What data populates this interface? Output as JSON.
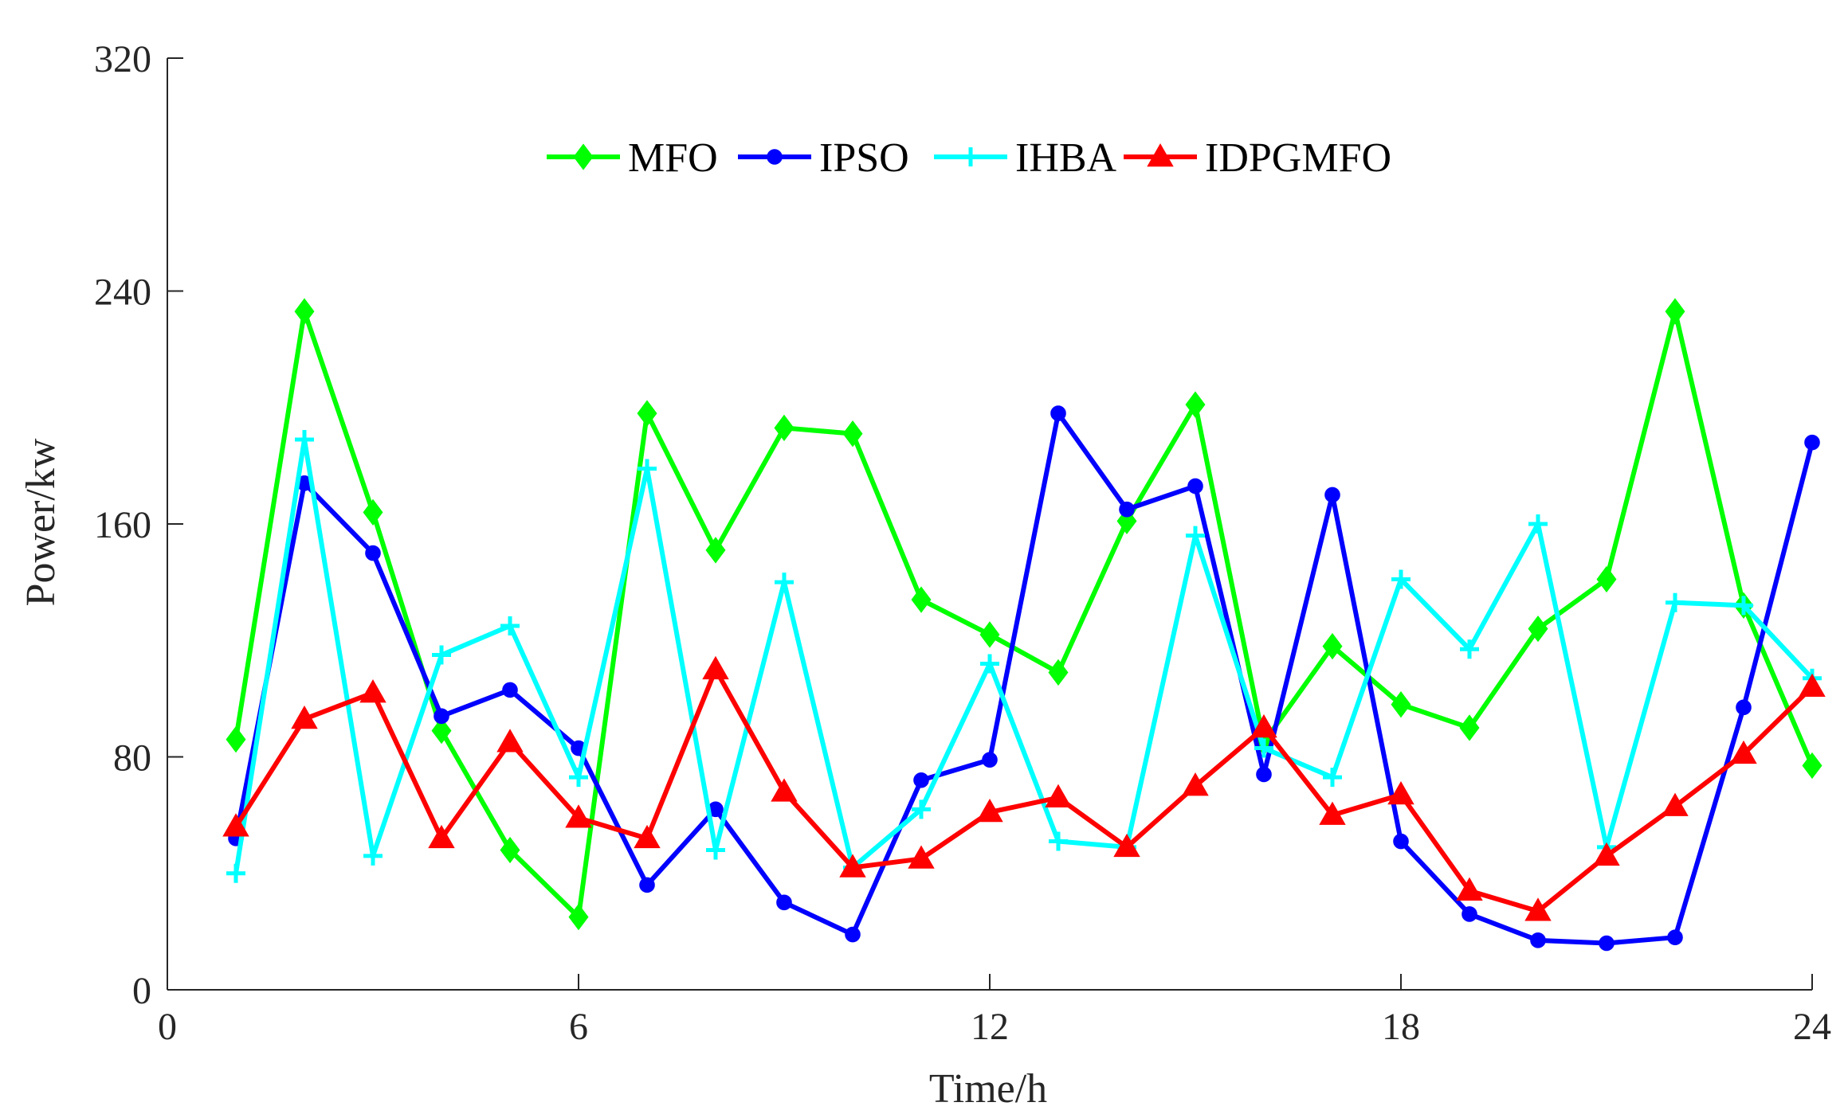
{
  "chart_data": {
    "type": "line",
    "title": "",
    "xlabel": "Time/h",
    "ylabel": "Power/kw",
    "xlim": [
      0,
      24
    ],
    "ylim": [
      0,
      320
    ],
    "xticks": [
      0,
      6,
      12,
      18,
      24
    ],
    "yticks": [
      0,
      80,
      160,
      240,
      320
    ],
    "grid": false,
    "legend": "top-center, horizontal",
    "x": [
      1,
      2,
      3,
      4,
      5,
      6,
      7,
      8,
      9,
      10,
      11,
      12,
      13,
      14,
      15,
      16,
      17,
      18,
      19,
      20,
      21,
      22,
      23,
      24
    ],
    "series": [
      {
        "name": "MFO",
        "color": "#00ff00",
        "marker": "diamond",
        "values": [
          86,
          233,
          164,
          89,
          48,
          25,
          198,
          151,
          193,
          191,
          134,
          122,
          109,
          161,
          201,
          85,
          118,
          98,
          90,
          124,
          141,
          233,
          132,
          77
        ]
      },
      {
        "name": "IPSO",
        "color": "#0000ff",
        "marker": "circle",
        "values": [
          52,
          174,
          150,
          94,
          103,
          83,
          36,
          62,
          30,
          19,
          72,
          79,
          198,
          165,
          173,
          74,
          170,
          51,
          26,
          17,
          16,
          18,
          97,
          188
        ]
      },
      {
        "name": "IHBA",
        "color": "#00ffff",
        "marker": "plus",
        "values": [
          40,
          189,
          46,
          115,
          125,
          73,
          179,
          48,
          140,
          42,
          62,
          112,
          51,
          49,
          156,
          83,
          73,
          141,
          117,
          160,
          49,
          133,
          132,
          107
        ]
      },
      {
        "name": "IDPGMFO",
        "color": "#ff0000",
        "marker": "triangle",
        "values": [
          56,
          93,
          102,
          52,
          85,
          59,
          52,
          110,
          68,
          42,
          45,
          61,
          66,
          49,
          70,
          90,
          60,
          67,
          34,
          27,
          46,
          63,
          81,
          104
        ]
      }
    ]
  }
}
